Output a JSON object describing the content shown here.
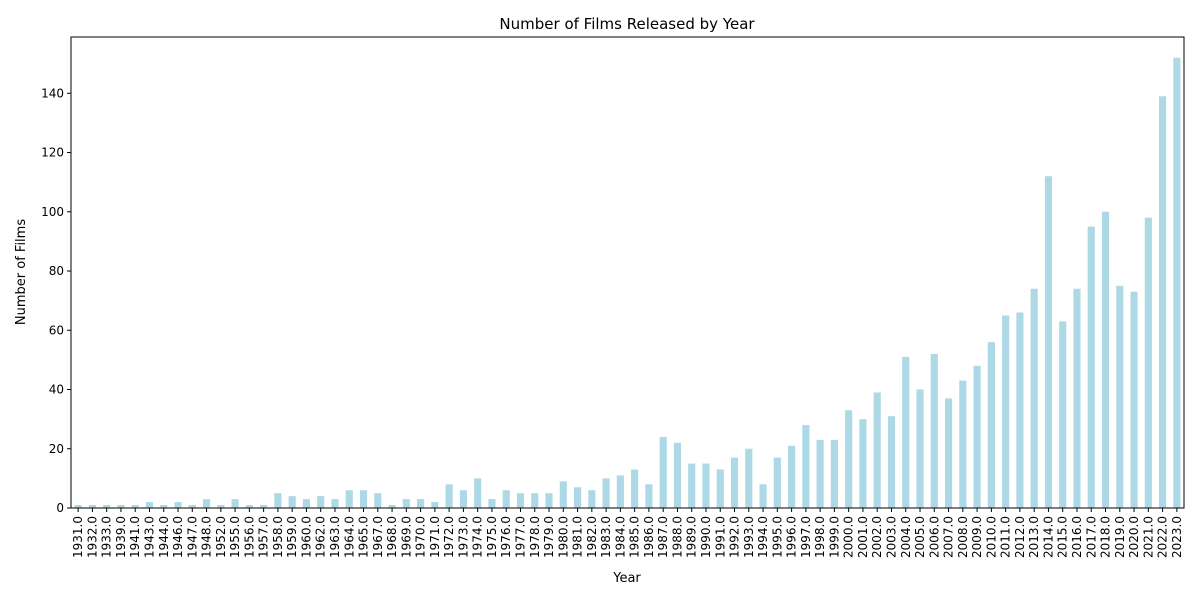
{
  "chart_data": {
    "type": "bar",
    "title": "Number of Films Released by Year",
    "xlabel": "Year",
    "ylabel": "Number of Films",
    "ylim": [
      0,
      159
    ],
    "yticks": [
      "0",
      "20",
      "40",
      "60",
      "80",
      "100",
      "120",
      "140"
    ],
    "grid": false,
    "legend": "none",
    "bar_color": "#add8e6",
    "categories": [
      "1931.0",
      "1932.0",
      "1933.0",
      "1939.0",
      "1941.0",
      "1943.0",
      "1944.0",
      "1946.0",
      "1947.0",
      "1948.0",
      "1952.0",
      "1955.0",
      "1956.0",
      "1957.0",
      "1958.0",
      "1959.0",
      "1960.0",
      "1962.0",
      "1963.0",
      "1964.0",
      "1965.0",
      "1967.0",
      "1968.0",
      "1969.0",
      "1970.0",
      "1971.0",
      "1972.0",
      "1973.0",
      "1974.0",
      "1975.0",
      "1976.0",
      "1977.0",
      "1978.0",
      "1979.0",
      "1980.0",
      "1981.0",
      "1982.0",
      "1983.0",
      "1984.0",
      "1985.0",
      "1986.0",
      "1987.0",
      "1988.0",
      "1989.0",
      "1990.0",
      "1991.0",
      "1992.0",
      "1993.0",
      "1994.0",
      "1995.0",
      "1996.0",
      "1997.0",
      "1998.0",
      "1999.0",
      "2000.0",
      "2001.0",
      "2002.0",
      "2003.0",
      "2004.0",
      "2005.0",
      "2006.0",
      "2007.0",
      "2008.0",
      "2009.0",
      "2010.0",
      "2011.0",
      "2012.0",
      "2013.0",
      "2014.0",
      "2015.0",
      "2016.0",
      "2017.0",
      "2018.0",
      "2019.0",
      "2020.0",
      "2021.0",
      "2022.0",
      "2023.0"
    ],
    "values": [
      1,
      1,
      1,
      1,
      1,
      2,
      1,
      2,
      1,
      3,
      1,
      3,
      1,
      1,
      5,
      4,
      3,
      4,
      3,
      6,
      6,
      5,
      1,
      3,
      3,
      2,
      8,
      6,
      10,
      3,
      6,
      5,
      5,
      5,
      9,
      7,
      6,
      10,
      11,
      13,
      8,
      24,
      22,
      15,
      15,
      13,
      17,
      20,
      8,
      17,
      21,
      28,
      23,
      23,
      33,
      30,
      39,
      31,
      51,
      40,
      52,
      37,
      43,
      48,
      56,
      65,
      66,
      74,
      112,
      63,
      74,
      95,
      100,
      75,
      73,
      98,
      139,
      152
    ]
  }
}
